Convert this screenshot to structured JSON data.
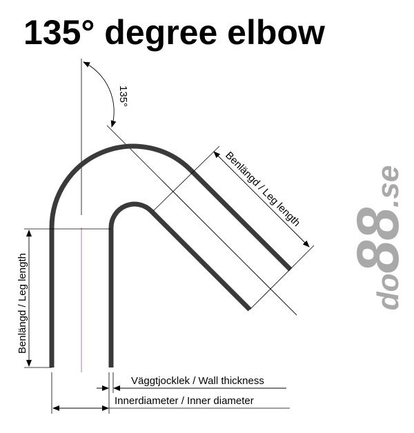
{
  "title": "135° degree elbow",
  "angle_label": "135°",
  "leg_length_label": "Benlängd / Leg length",
  "wall_thickness_label": "Väggtjocklek / Wall thickness",
  "inner_diameter_label": "Innerdiameter / Inner diameter",
  "logo": {
    "prefix": "do",
    "number": "88",
    "suffix": ".se"
  },
  "colors": {
    "pipe": "#3a3a3a",
    "centerline": "#b07ac0",
    "logo": "#a9a9a9"
  }
}
